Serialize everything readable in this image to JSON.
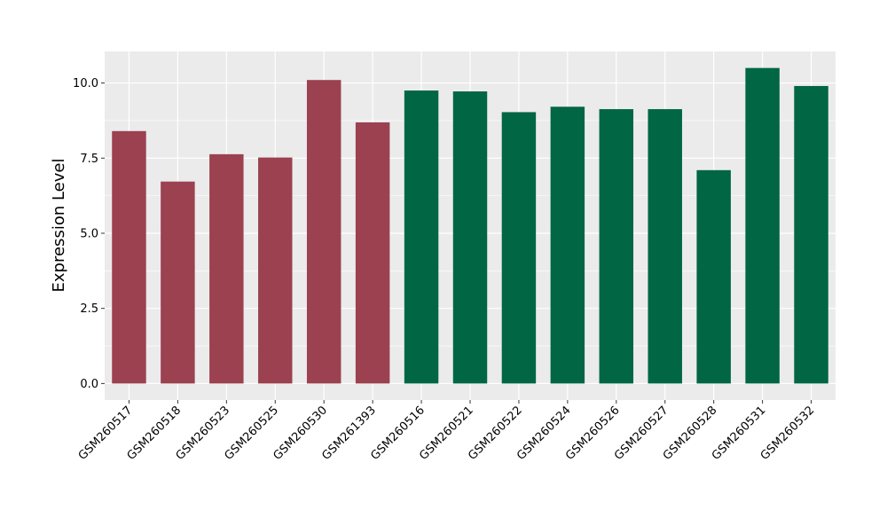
{
  "chart_data": {
    "type": "bar",
    "title": "",
    "xlabel": "",
    "ylabel": "Expression Level",
    "ylim": [
      -0.55,
      11.05
    ],
    "yticks": [
      0.0,
      2.5,
      5.0,
      7.5,
      10.0
    ],
    "ytick_labels": [
      "0.0",
      "2.5",
      "5.0",
      "7.5",
      "10.0"
    ],
    "grid": true,
    "legend": "none",
    "categories": [
      "GSM260517",
      "GSM260518",
      "GSM260523",
      "GSM260525",
      "GSM260530",
      "GSM261393",
      "GSM260516",
      "GSM260521",
      "GSM260522",
      "GSM260524",
      "GSM260526",
      "GSM260527",
      "GSM260528",
      "GSM260531",
      "GSM260532"
    ],
    "values": [
      8.4,
      6.72,
      7.63,
      7.52,
      10.1,
      8.69,
      9.75,
      9.72,
      9.03,
      9.21,
      9.13,
      9.13,
      7.1,
      10.5,
      9.9
    ],
    "bar_colors": [
      "#9b4150",
      "#9b4150",
      "#9b4150",
      "#9b4150",
      "#9b4150",
      "#9b4150",
      "#006644",
      "#006644",
      "#006644",
      "#006644",
      "#006644",
      "#006644",
      "#006644",
      "#006644",
      "#006644"
    ],
    "panel_background": "#ebebeb",
    "grid_color": "#ffffff"
  }
}
